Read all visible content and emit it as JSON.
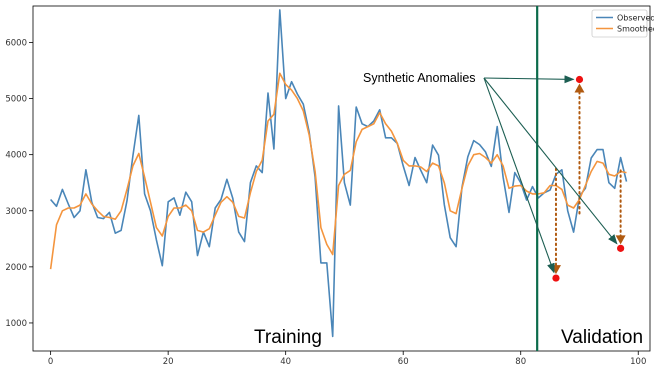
{
  "chart_data": {
    "type": "line",
    "title": "",
    "xlabel": "",
    "ylabel": "",
    "xlim": [
      -3,
      102
    ],
    "ylim": [
      500,
      6650
    ],
    "xticks": [
      0,
      20,
      40,
      60,
      80,
      100
    ],
    "yticks": [
      1000,
      2000,
      3000,
      4000,
      5000,
      6000
    ],
    "grid": false,
    "legend_position": "top-right",
    "series": [
      {
        "name": "Observed",
        "color": "#4a86b8",
        "x": [
          0,
          1,
          2,
          3,
          4,
          5,
          6,
          7,
          8,
          9,
          10,
          11,
          12,
          13,
          14,
          15,
          16,
          17,
          18,
          19,
          20,
          21,
          22,
          23,
          24,
          25,
          26,
          27,
          28,
          29,
          30,
          31,
          32,
          33,
          34,
          35,
          36,
          37,
          38,
          39,
          40,
          41,
          42,
          43,
          44,
          45,
          46,
          47,
          48,
          49,
          50,
          51,
          52,
          53,
          54,
          55,
          56,
          57,
          58,
          59,
          60,
          61,
          62,
          63,
          64,
          65,
          66,
          67,
          68,
          69,
          70,
          71,
          72,
          73,
          74,
          75,
          76,
          77,
          78,
          79,
          80,
          81,
          82,
          83,
          84,
          85,
          86,
          87,
          88,
          89,
          90,
          91,
          92,
          93,
          94,
          95,
          96,
          97,
          98
        ],
        "y": [
          3200,
          3080,
          3380,
          3120,
          2880,
          3000,
          3730,
          3150,
          2880,
          2860,
          2970,
          2600,
          2650,
          3180,
          3980,
          4700,
          3300,
          3000,
          2480,
          2020,
          3160,
          3230,
          2920,
          3330,
          3160,
          2200,
          2620,
          2360,
          3050,
          3200,
          3560,
          3220,
          2620,
          2450,
          3500,
          3800,
          3680,
          5100,
          4100,
          6580,
          5000,
          5300,
          5080,
          4900,
          4400,
          3600,
          2070,
          2070,
          760,
          4870,
          3500,
          3100,
          4850,
          4550,
          4500,
          4600,
          4800,
          4300,
          4300,
          4200,
          3800,
          3450,
          3950,
          3720,
          3500,
          4170,
          3990,
          3110,
          2520,
          2360,
          3420,
          3960,
          4250,
          4180,
          4050,
          3790,
          4500,
          3600,
          2970,
          3680,
          3500,
          3190,
          3430,
          3230,
          3320,
          3370,
          3650,
          3730,
          3000,
          2620,
          3260,
          3400,
          3940,
          4090,
          4090,
          3500,
          3400,
          3950,
          3520
        ]
      },
      {
        "name": "Smoothed",
        "color": "#f4953e",
        "x": [
          0,
          1,
          2,
          3,
          4,
          5,
          6,
          7,
          8,
          9,
          10,
          11,
          12,
          13,
          14,
          15,
          16,
          17,
          18,
          19,
          20,
          21,
          22,
          23,
          24,
          25,
          26,
          27,
          28,
          29,
          30,
          31,
          32,
          33,
          34,
          35,
          36,
          37,
          38,
          39,
          40,
          41,
          42,
          43,
          44,
          45,
          46,
          47,
          48,
          49,
          50,
          51,
          52,
          53,
          54,
          55,
          56,
          57,
          58,
          59,
          60,
          61,
          62,
          63,
          64,
          65,
          66,
          67,
          68,
          69,
          70,
          71,
          72,
          73,
          74,
          75,
          76,
          77,
          78,
          79,
          80,
          81,
          82,
          83,
          84,
          85,
          86,
          87,
          88,
          89,
          90,
          91,
          92,
          93,
          94,
          95,
          96,
          97,
          98
        ],
        "y": [
          1960,
          2750,
          3000,
          3050,
          3050,
          3100,
          3300,
          3120,
          3000,
          2900,
          2880,
          2850,
          3000,
          3380,
          3800,
          4020,
          3600,
          3150,
          2700,
          2550,
          2900,
          3050,
          3050,
          3100,
          3000,
          2650,
          2620,
          2680,
          2920,
          3150,
          3250,
          3150,
          2900,
          2870,
          3320,
          3700,
          3900,
          4600,
          4720,
          5450,
          5250,
          5150,
          5000,
          4780,
          4350,
          3700,
          2700,
          2400,
          2220,
          3450,
          3650,
          3720,
          4230,
          4450,
          4500,
          4550,
          4750,
          4550,
          4420,
          4200,
          3900,
          3800,
          3800,
          3780,
          3700,
          3850,
          3800,
          3500,
          3000,
          2950,
          3400,
          3800,
          4000,
          4020,
          3950,
          3850,
          4000,
          3800,
          3400,
          3440,
          3450,
          3350,
          3300,
          3300,
          3320,
          3450,
          3450,
          3380,
          3100,
          3050,
          3200,
          3450,
          3700,
          3880,
          3850,
          3650,
          3620,
          3700,
          3680
        ]
      }
    ],
    "anomalies": [
      {
        "x": 86,
        "y": 1800,
        "shifted_from": 3750
      },
      {
        "x": 90,
        "y": 5340,
        "shifted_from": 2950
      },
      {
        "x": 97,
        "y": 2330,
        "shifted_from": 3720
      }
    ],
    "split_x": 82.8,
    "annotations": {
      "training": "Training",
      "validation": "Validation",
      "synthetic": "Synthetic Anomalies"
    },
    "colors": {
      "split_line": "#0b6b4b",
      "arrow": "#1c5e52",
      "shift_line": "#b05a10",
      "anomaly_point": "#ee1111"
    }
  }
}
